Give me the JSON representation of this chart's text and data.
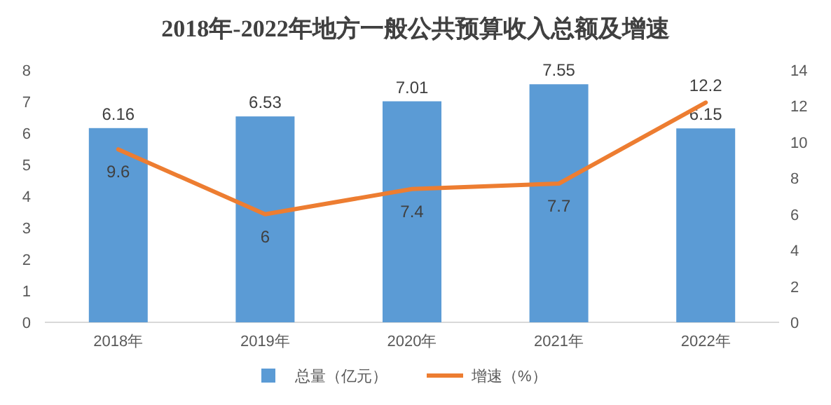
{
  "chart_data": {
    "type": "bar",
    "title": "2018年-2022年地方一般公共预算收入总额及增速",
    "categories": [
      "2018年",
      "2019年",
      "2020年",
      "2021年",
      "2022年"
    ],
    "series": [
      {
        "name": "总量（亿元）",
        "color": "#5b9bd5",
        "values": [
          6.16,
          6.53,
          7.01,
          7.55,
          6.15
        ]
      },
      {
        "name": "增速（%）",
        "type": "line",
        "axis": "y2",
        "color": "#ed7d31",
        "values": [
          9.6,
          6,
          7.4,
          7.7,
          12.2
        ]
      }
    ],
    "ylim": [
      0,
      8
    ],
    "yticks": [
      0,
      1,
      2,
      3,
      4,
      5,
      6,
      7,
      8
    ],
    "y2lim": [
      0,
      14
    ],
    "y2ticks": [
      0,
      2,
      4,
      6,
      8,
      10,
      12,
      14
    ],
    "data_labels": true,
    "legend": "bottom",
    "grid": false
  }
}
